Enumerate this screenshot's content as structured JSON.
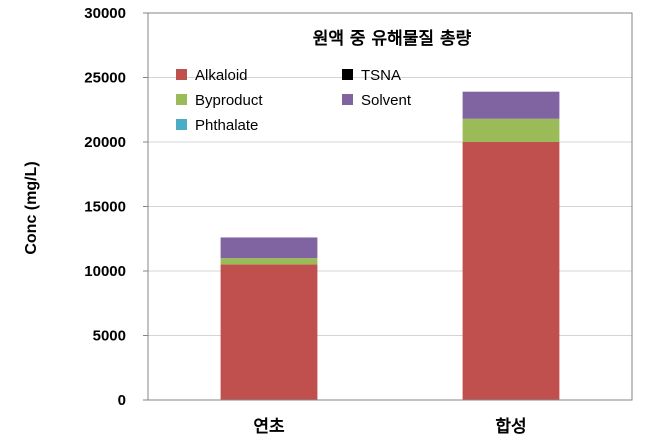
{
  "chart_data": {
    "type": "bar",
    "stacked": true,
    "title": "원액 중 유해물질 총량",
    "ylabel": "Conc (mg/L)",
    "xlabel": "",
    "categories": [
      "연초",
      "합성"
    ],
    "ylim": [
      0,
      30000
    ],
    "yticks": [
      "0",
      "5000",
      "10000",
      "15000",
      "20000",
      "25000",
      "30000"
    ],
    "grid": true,
    "legend_position": "top-left",
    "series": [
      {
        "name": "Alkaloid",
        "color": "#c0504d",
        "values": [
          10500,
          20000
        ]
      },
      {
        "name": "Byproduct",
        "color": "#9bbb59",
        "values": [
          500,
          1800
        ]
      },
      {
        "name": "Phthalate",
        "color": "#4bacc6",
        "values": [
          0,
          0
        ]
      },
      {
        "name": "TSNA",
        "color": "#000000",
        "values": [
          0,
          0
        ]
      },
      {
        "name": "Solvent",
        "color": "#8064a2",
        "values": [
          1600,
          2100
        ]
      }
    ],
    "legend_order": [
      "Alkaloid",
      "TSNA",
      "Byproduct",
      "Solvent",
      "Phthalate"
    ]
  }
}
